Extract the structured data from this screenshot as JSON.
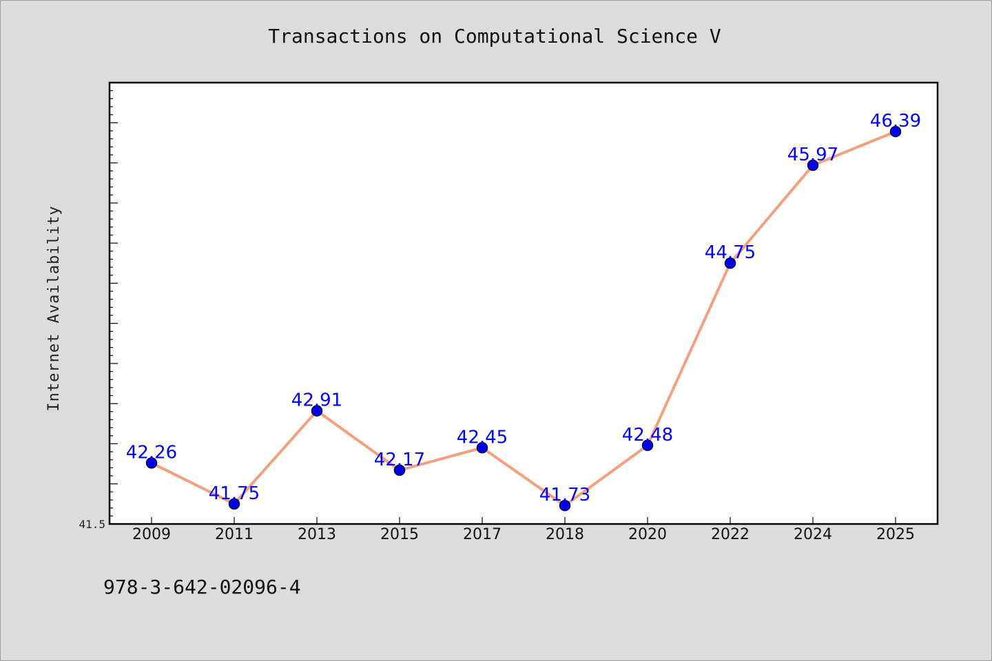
{
  "chart_data": {
    "type": "line",
    "title": "Transactions on Computational Science V",
    "xlabel": "",
    "ylabel": "Internet Availability",
    "categories": [
      "2009",
      "2011",
      "2013",
      "2015",
      "2017",
      "2018",
      "2020",
      "2022",
      "2024",
      "2025"
    ],
    "series": [
      {
        "values": [
          42.26,
          41.75,
          42.91,
          42.17,
          42.45,
          41.73,
          42.48,
          44.75,
          45.97,
          46.39
        ],
        "data_labels": [
          "42.26",
          "41.75",
          "42.91",
          "42.17",
          "42.45",
          "41.73",
          "42.48",
          "44.75",
          "45.97",
          "46.39"
        ]
      }
    ],
    "ylim": [
      41.5,
      47.0
    ],
    "ytick_minor_step": 0.1,
    "ytick_major_step": 0.5,
    "ytick_labels": [
      {
        "value": 41.5,
        "label": "41.5"
      }
    ],
    "grid": false,
    "legend": "none",
    "colors": {
      "line": "#f4a07c",
      "marker_fill": "#0000ee",
      "marker_edge": "#000033",
      "data_label": "#0000ff",
      "plot_background": "#ffffff",
      "page_background": "#dcdcdc"
    }
  },
  "footnote": "978-3-642-02096-4"
}
